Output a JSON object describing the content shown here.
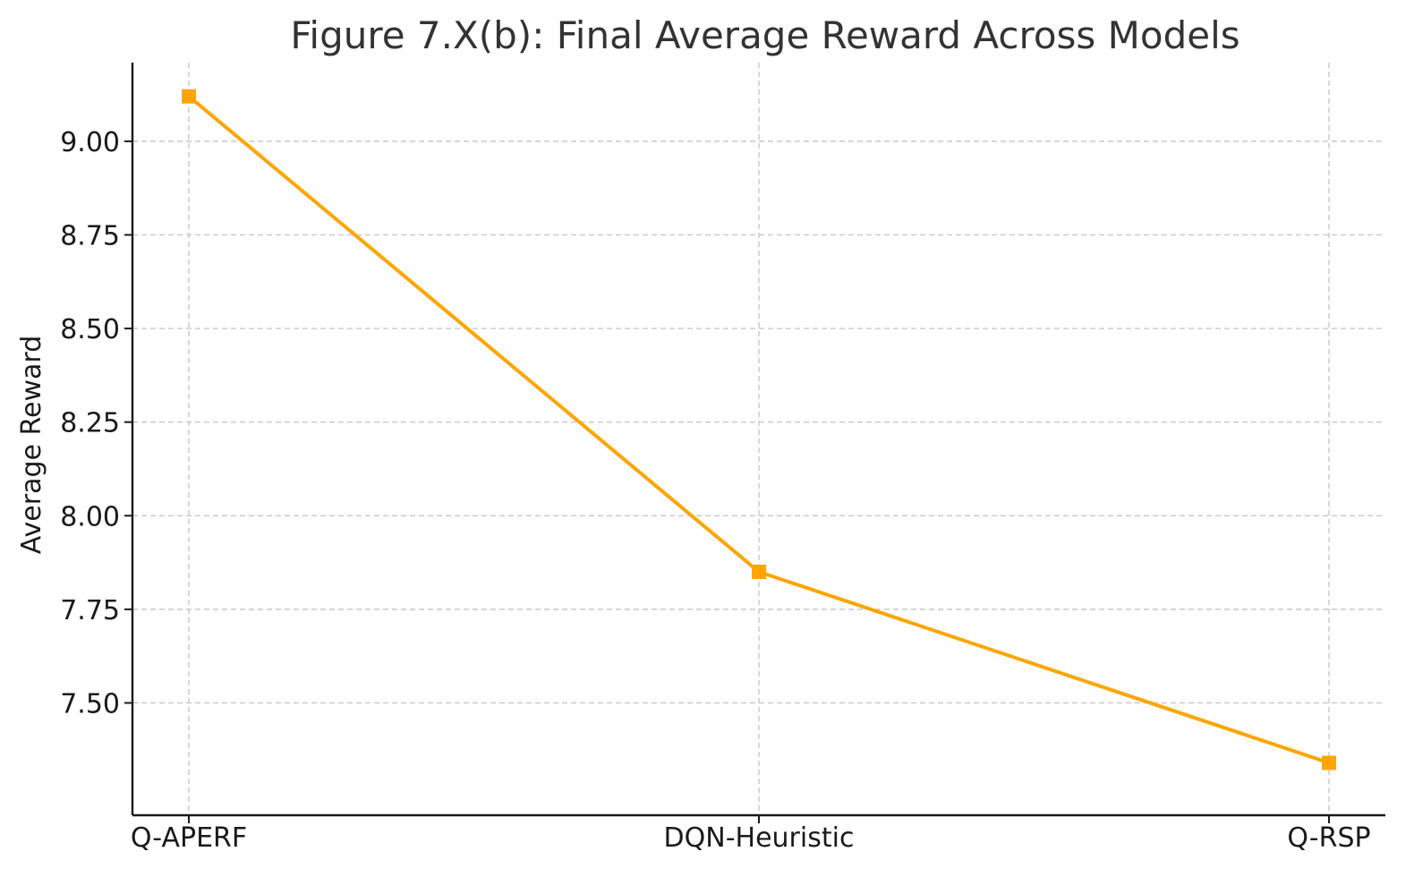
{
  "chart_data": {
    "type": "line",
    "title": "Figure 7.X(b): Final Average Reward Across Models",
    "xlabel": "",
    "ylabel": "Average Reward",
    "categories": [
      "Q-APERF",
      "DQN-Heuristic",
      "Q-RSP"
    ],
    "series": [
      {
        "values": [
          9.12,
          7.85,
          7.34
        ],
        "color": "#FFA500",
        "marker": "square"
      }
    ],
    "yticks": [
      7.5,
      7.75,
      8.0,
      8.25,
      8.5,
      8.75,
      9.0
    ],
    "ytick_labels": [
      "7.50",
      "7.75",
      "8.00",
      "8.25",
      "8.50",
      "8.75",
      "9.00"
    ],
    "ylim": [
      7.2,
      9.21
    ],
    "grid": true
  }
}
